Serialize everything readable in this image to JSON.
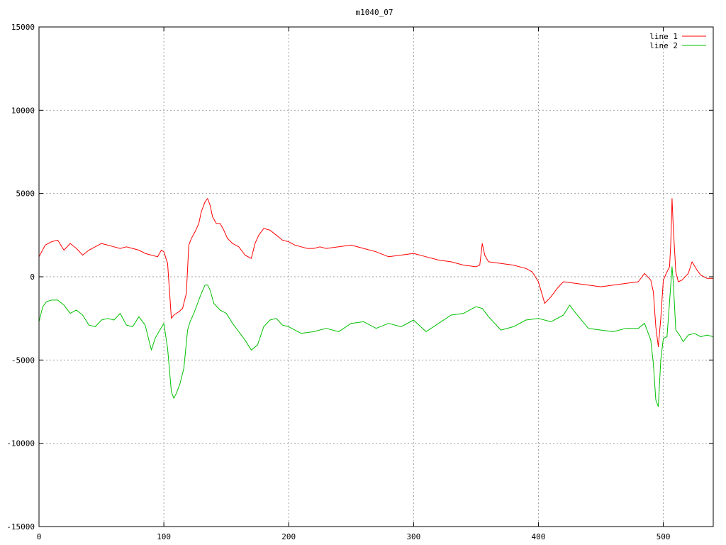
{
  "chart_data": {
    "type": "line",
    "title": "m1040_07",
    "xlabel": "",
    "ylabel": "",
    "xlim": [
      0,
      540
    ],
    "ylim": [
      -15000,
      15000
    ],
    "xticks": [
      0,
      100,
      200,
      300,
      400,
      500
    ],
    "yticks": [
      -15000,
      -10000,
      -5000,
      0,
      5000,
      10000,
      15000
    ],
    "grid": true,
    "legend_position": "top-right",
    "series": [
      {
        "name": "line 1",
        "color": "#ff0000",
        "x": [
          0,
          5,
          10,
          15,
          20,
          25,
          30,
          35,
          40,
          45,
          50,
          55,
          60,
          65,
          70,
          75,
          80,
          85,
          90,
          95,
          98,
          100,
          103,
          106,
          108,
          110,
          112,
          115,
          118,
          120,
          122,
          125,
          128,
          130,
          133,
          135,
          137,
          139,
          142,
          145,
          148,
          151,
          155,
          160,
          165,
          170,
          173,
          176,
          180,
          185,
          190,
          195,
          200,
          205,
          210,
          215,
          220,
          225,
          230,
          240,
          250,
          260,
          270,
          280,
          290,
          300,
          310,
          320,
          330,
          340,
          350,
          353,
          355,
          357,
          360,
          370,
          380,
          390,
          395,
          400,
          405,
          410,
          415,
          420,
          430,
          440,
          450,
          460,
          470,
          480,
          485,
          490,
          492,
          494,
          496,
          498,
          500,
          503,
          505,
          506,
          507,
          508,
          510,
          512,
          515,
          520,
          523,
          527,
          530,
          535,
          540
        ],
        "y": [
          1200,
          1900,
          2100,
          2200,
          1600,
          2000,
          1700,
          1300,
          1600,
          1800,
          2000,
          1900,
          1800,
          1700,
          1800,
          1700,
          1600,
          1400,
          1300,
          1200,
          1600,
          1500,
          800,
          -2500,
          -2300,
          -2200,
          -2100,
          -1900,
          -1000,
          1900,
          2300,
          2700,
          3200,
          3900,
          4500,
          4700,
          4300,
          3600,
          3200,
          3200,
          2800,
          2300,
          2000,
          1800,
          1300,
          1100,
          2000,
          2500,
          2900,
          2800,
          2500,
          2200,
          2100,
          1900,
          1800,
          1700,
          1700,
          1800,
          1700,
          1800,
          1900,
          1700,
          1500,
          1200,
          1300,
          1400,
          1200,
          1000,
          900,
          700,
          600,
          700,
          2000,
          1300,
          900,
          800,
          700,
          500,
          300,
          -300,
          -1600,
          -1200,
          -700,
          -300,
          -400,
          -500,
          -600,
          -500,
          -400,
          -300,
          200,
          -200,
          -900,
          -3000,
          -4200,
          -2500,
          -200,
          300,
          600,
          2000,
          4700,
          3000,
          300,
          -300,
          -200,
          200,
          900,
          400,
          100,
          -100,
          -100
        ]
      },
      {
        "name": "line 2",
        "color": "#00c000",
        "x": [
          0,
          3,
          6,
          10,
          15,
          20,
          25,
          30,
          35,
          40,
          45,
          50,
          55,
          60,
          65,
          70,
          75,
          80,
          85,
          90,
          93,
          96,
          100,
          103,
          106,
          108,
          110,
          113,
          116,
          119,
          121,
          124,
          127,
          130,
          133,
          135,
          137,
          140,
          145,
          150,
          155,
          160,
          165,
          170,
          175,
          180,
          185,
          190,
          195,
          200,
          210,
          220,
          230,
          240,
          250,
          260,
          270,
          280,
          290,
          300,
          310,
          320,
          330,
          340,
          350,
          355,
          360,
          370,
          380,
          390,
          400,
          410,
          420,
          425,
          430,
          440,
          450,
          460,
          470,
          480,
          485,
          490,
          492,
          494,
          496,
          498,
          500,
          503,
          505,
          507,
          508,
          510,
          513,
          516,
          520,
          525,
          530,
          535,
          540
        ],
        "y": [
          -2700,
          -1800,
          -1500,
          -1400,
          -1400,
          -1700,
          -2200,
          -2000,
          -2300,
          -2900,
          -3000,
          -2600,
          -2500,
          -2600,
          -2200,
          -2900,
          -3000,
          -2400,
          -2900,
          -4400,
          -3700,
          -3300,
          -2800,
          -4300,
          -6900,
          -7300,
          -7000,
          -6400,
          -5500,
          -3200,
          -2700,
          -2200,
          -1600,
          -1000,
          -500,
          -500,
          -800,
          -1600,
          -2000,
          -2200,
          -2800,
          -3300,
          -3800,
          -4400,
          -4100,
          -3000,
          -2600,
          -2500,
          -2900,
          -3000,
          -3400,
          -3300,
          -3100,
          -3300,
          -2800,
          -2700,
          -3100,
          -2800,
          -3000,
          -2600,
          -3300,
          -2800,
          -2300,
          -2200,
          -1800,
          -1900,
          -2400,
          -3200,
          -3000,
          -2600,
          -2500,
          -2700,
          -2300,
          -1700,
          -2200,
          -3100,
          -3200,
          -3300,
          -3100,
          -3100,
          -2800,
          -3800,
          -5200,
          -7400,
          -7800,
          -5000,
          -3700,
          -3600,
          -1500,
          600,
          -300,
          -3200,
          -3500,
          -3900,
          -3500,
          -3400,
          -3600,
          -3500,
          -3600
        ]
      }
    ]
  }
}
